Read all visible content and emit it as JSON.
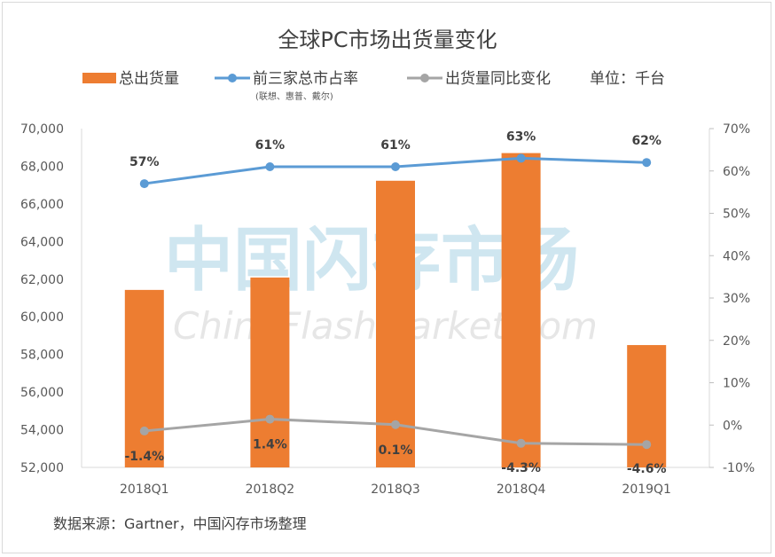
{
  "chart_data": {
    "type": "bar",
    "title": "全球PC市场出货量变化",
    "unit_label": "单位：千台",
    "categories": [
      "2018Q1",
      "2018Q2",
      "2018Q3",
      "2018Q4",
      "2019Q1"
    ],
    "series": [
      {
        "name": "总出货量",
        "type": "bar",
        "axis": "left",
        "color": "#ED7D31",
        "values": [
          61430,
          62090,
          67230,
          68700,
          58500
        ]
      },
      {
        "name": "前三家总市占率",
        "subtitle": "(联想、惠普、戴尔)",
        "type": "line",
        "axis": "right",
        "color": "#5B9BD5",
        "values": [
          57,
          61,
          61,
          63,
          62
        ],
        "labels": [
          "57%",
          "61%",
          "61%",
          "63%",
          "62%"
        ]
      },
      {
        "name": "出货量同比变化",
        "type": "line",
        "axis": "right",
        "color": "#A5A5A5",
        "values": [
          -1.4,
          1.4,
          0.1,
          -4.3,
          -4.6
        ],
        "labels": [
          "-1.4%",
          "1.4%",
          "0.1%",
          "-4.3%",
          "-4.6%"
        ]
      }
    ],
    "left_axis": {
      "ylim": [
        52000,
        70000
      ],
      "ticks": [
        "52,000",
        "54,000",
        "56,000",
        "58,000",
        "60,000",
        "62,000",
        "64,000",
        "66,000",
        "68,000",
        "70,000"
      ]
    },
    "right_axis": {
      "ylim": [
        -10,
        70
      ],
      "ticks": [
        "-10%",
        "0%",
        "10%",
        "20%",
        "30%",
        "40%",
        "50%",
        "60%",
        "70%"
      ]
    },
    "legend": "top",
    "source": "数据来源：Gartner，中国闪存市场整理",
    "watermark": [
      "中国闪存市场",
      "ChinaFlashMarket.com"
    ]
  }
}
